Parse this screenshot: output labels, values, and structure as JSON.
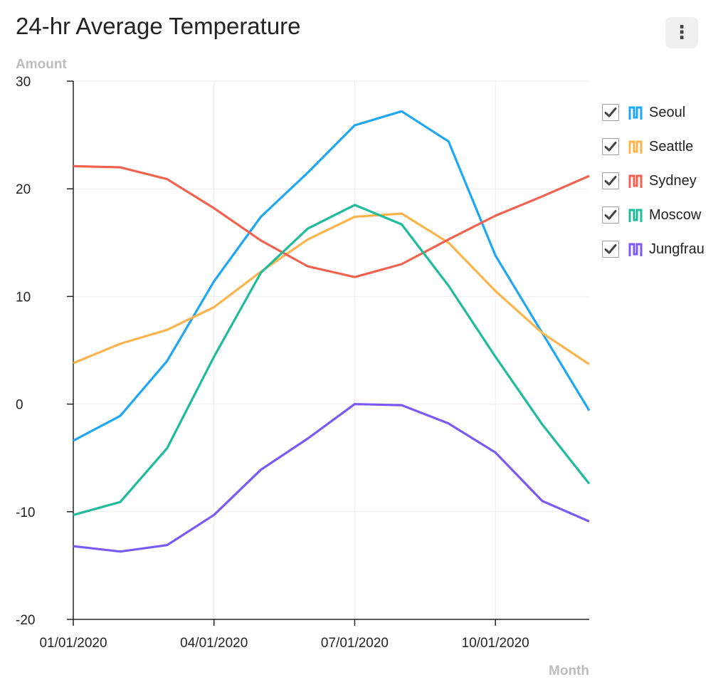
{
  "header": {
    "title": "24-hr Average Temperature",
    "menu_icon": "more-vertical-icon"
  },
  "chart_data": {
    "type": "line",
    "title": "24-hr Average Temperature",
    "ylabel": "Amount",
    "xlabel": "Month",
    "ylim": [
      -20,
      30
    ],
    "yticks": [
      30,
      20,
      10,
      0,
      -10,
      -20
    ],
    "x": [
      "01/01/2020",
      "02/01/2020",
      "03/01/2020",
      "04/01/2020",
      "05/01/2020",
      "06/01/2020",
      "07/01/2020",
      "08/01/2020",
      "09/01/2020",
      "10/01/2020",
      "11/01/2020",
      "12/01/2020"
    ],
    "xtick_labels": [
      "01/01/2020",
      "04/01/2020",
      "07/01/2020",
      "10/01/2020"
    ],
    "xlim": [
      "01/01/2020",
      "12/01/2020"
    ],
    "grid": true,
    "legend_position": "right",
    "series": [
      {
        "name": "Seoul",
        "color": "#1ea7f2",
        "values": [
          -3.4,
          -1.1,
          4.0,
          11.4,
          17.4,
          21.5,
          25.9,
          27.2,
          24.4,
          13.8,
          6.6,
          -0.6
        ]
      },
      {
        "name": "Seattle",
        "color": "#fbb44c",
        "values": [
          3.8,
          5.6,
          6.9,
          9.0,
          12.3,
          15.3,
          17.4,
          17.7,
          15.0,
          10.5,
          6.6,
          3.7
        ]
      },
      {
        "name": "Sydney",
        "color": "#f26250",
        "values": [
          22.1,
          22.0,
          20.9,
          18.2,
          15.2,
          12.8,
          11.8,
          13.0,
          15.3,
          17.5,
          19.3,
          21.2
        ]
      },
      {
        "name": "Moscow",
        "color": "#1fbc9c",
        "values": [
          -10.3,
          -9.1,
          -4.1,
          4.4,
          12.2,
          16.3,
          18.5,
          16.7,
          11.0,
          4.4,
          -1.9,
          -7.4
        ]
      },
      {
        "name": "Jungfrau",
        "color": "#7a5af5",
        "values": [
          -13.2,
          -13.7,
          -13.1,
          -10.3,
          -6.1,
          -3.2,
          0.0,
          -0.1,
          -1.8,
          -4.5,
          -9.0,
          -10.9
        ]
      }
    ]
  }
}
